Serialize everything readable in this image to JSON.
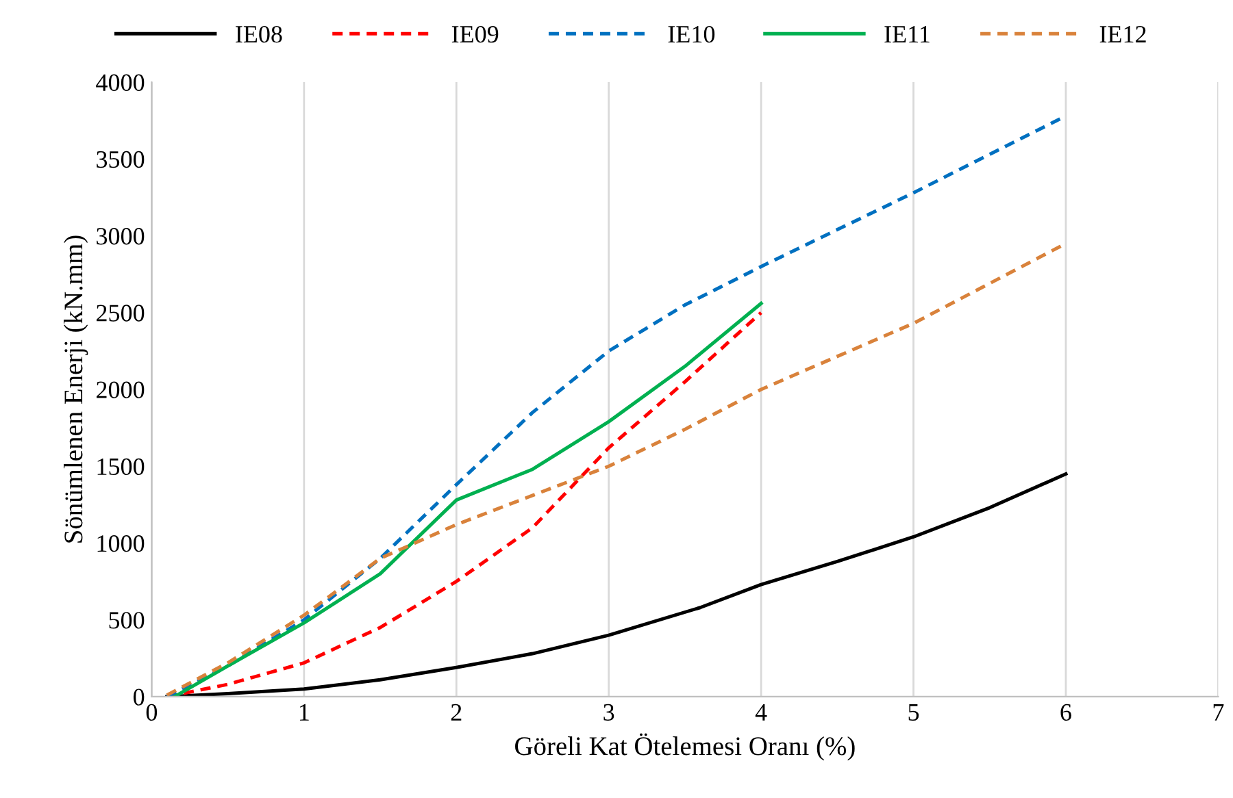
{
  "chart_data": {
    "type": "line",
    "xlabel": "Göreli Kat Ötelemesi Oranı (%)",
    "ylabel": "Sönümlenen Enerji (kN.mm)",
    "xlim": [
      0,
      7
    ],
    "ylim": [
      0,
      4000
    ],
    "xticks": [
      0,
      1,
      2,
      3,
      4,
      5,
      6,
      7
    ],
    "yticks": [
      0,
      500,
      1000,
      1500,
      2000,
      2500,
      3000,
      3500,
      4000
    ],
    "grid": "x",
    "legend": "top",
    "series": [
      {
        "name": "IE08",
        "color": "#000000",
        "line_style": "solid",
        "x": [
          0.1,
          0.5,
          1,
          1.5,
          2,
          2.5,
          3,
          3.6,
          4,
          4.5,
          5,
          5.5,
          6
        ],
        "values": [
          0,
          20,
          50,
          110,
          190,
          280,
          400,
          580,
          730,
          880,
          1040,
          1230,
          1450
        ]
      },
      {
        "name": "IE09",
        "color": "#ff0000",
        "line_style": "dashed",
        "x": [
          0.1,
          0.5,
          1,
          1.5,
          2,
          2.5,
          3,
          3.5,
          4
        ],
        "values": [
          0,
          80,
          220,
          450,
          750,
          1100,
          1620,
          2050,
          2500
        ]
      },
      {
        "name": "IE10",
        "color": "#0070c0",
        "line_style": "dashed",
        "x": [
          0.1,
          0.5,
          1,
          1.5,
          2,
          2.5,
          3,
          3.5,
          4,
          5,
          6
        ],
        "values": [
          0,
          200,
          500,
          900,
          1380,
          1850,
          2250,
          2550,
          2800,
          3280,
          3780
        ]
      },
      {
        "name": "IE11",
        "color": "#00b050",
        "line_style": "solid",
        "x": [
          0.15,
          0.5,
          1,
          1.5,
          2,
          2.5,
          3,
          3.5,
          4
        ],
        "values": [
          0,
          200,
          480,
          800,
          1280,
          1480,
          1790,
          2150,
          2560
        ]
      },
      {
        "name": "IE12",
        "color": "#d9823b",
        "line_style": "dashed",
        "x": [
          0.1,
          0.5,
          1,
          1.5,
          2,
          2.5,
          3,
          3.5,
          4,
          5,
          6
        ],
        "values": [
          10,
          220,
          530,
          900,
          1120,
          1310,
          1500,
          1740,
          2000,
          2430,
          2950
        ]
      }
    ]
  }
}
